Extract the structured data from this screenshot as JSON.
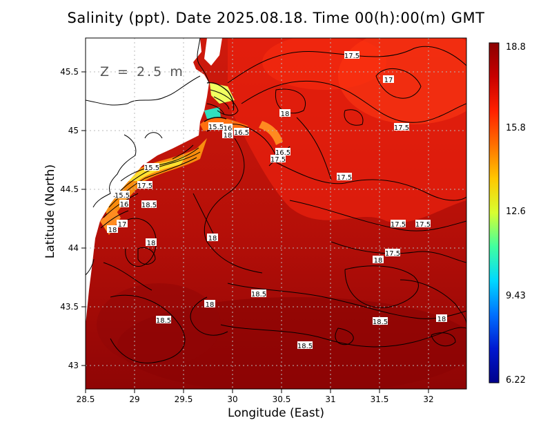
{
  "title": "Salinity (ppt). Date 2025.08.18. Time 00(h):00(m) GMT",
  "depth_label": "Z = 2.5 m",
  "x_axis": {
    "label": "Longitude (East)",
    "ticks": [
      "28.5",
      "29",
      "29.5",
      "30",
      "30.5",
      "31",
      "31.5",
      "32"
    ]
  },
  "y_axis": {
    "label": "Latitude (North)",
    "ticks": [
      "45.5",
      "45",
      "44.5",
      "44",
      "43.5",
      "43"
    ]
  },
  "colorbar": {
    "ticks": [
      "18.8",
      "15.8",
      "12.6",
      "9.43",
      "6.22"
    ],
    "colors": [
      "#8b0000",
      "#cc0000",
      "#ff2a00",
      "#ff7a00",
      "#ffd000",
      "#c8ff3c",
      "#38ffb0",
      "#00d0ff",
      "#0060ff",
      "#0010c8",
      "#00008b"
    ]
  },
  "contour_labels": [
    "17.5",
    "17",
    "18",
    "17.5",
    "15.5",
    "16",
    "18",
    "16.5",
    "16.5",
    "17.5",
    "15.5",
    "17.5",
    "15.5",
    "16",
    "18.5",
    "17",
    "18",
    "18",
    "18",
    "17.5",
    "17.5",
    "17.5",
    "18.5",
    "17.5",
    "18",
    "18",
    "18.5",
    "18",
    "18.5",
    "18.5"
  ]
}
